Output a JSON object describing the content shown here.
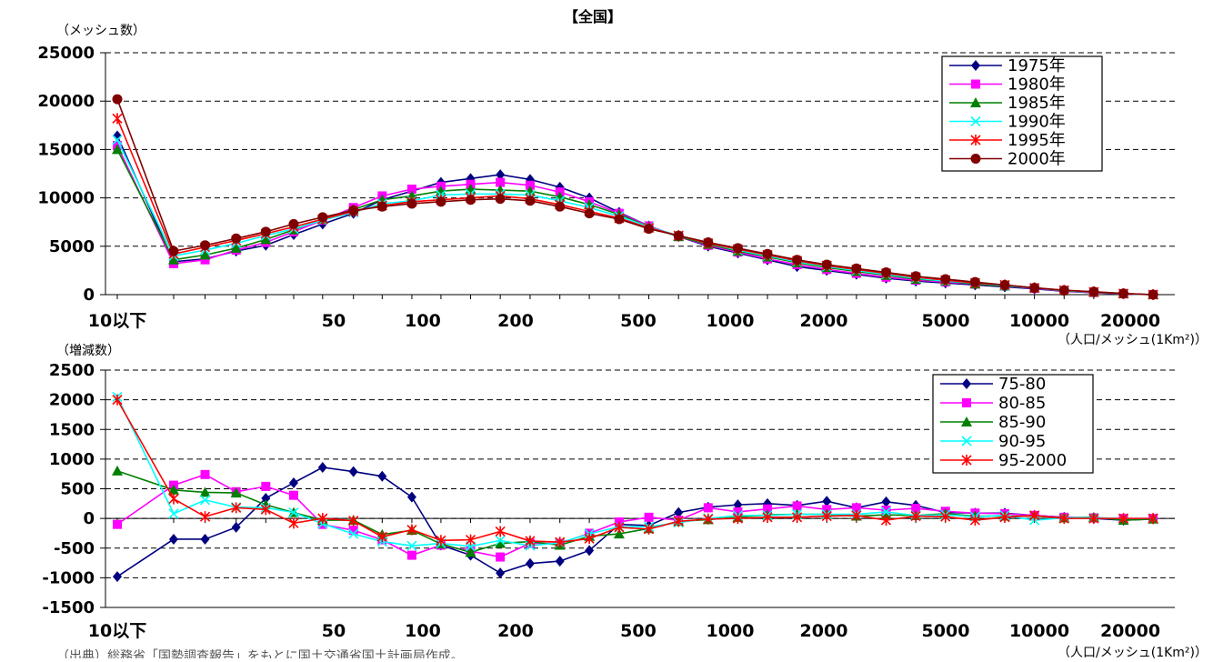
{
  "chart_data": [
    {
      "type": "line",
      "title": "【全国】",
      "ylabel": "（メッシュ数）",
      "xlabel": "（人口/メッシュ(1Km²)）",
      "ylim": [
        0,
        25000
      ],
      "yticks": [
        "0",
        "5000",
        "10000",
        "15000",
        "20000",
        "25000"
      ],
      "x_scale": "log",
      "x_tick_labels": [
        "10以下",
        "50",
        "100",
        "200",
        "500",
        "1000",
        "2000",
        "5000",
        "10000",
        "20000"
      ],
      "grid": "horizontal dashed",
      "legend_position": "top-right",
      "x": [
        "10以下",
        15,
        19,
        24,
        30,
        37,
        46,
        58,
        72,
        90,
        112,
        140,
        175,
        219,
        274,
        342,
        428,
        535,
        669,
        836,
        1045,
        1306,
        1632,
        2040,
        2550,
        3188,
        3985,
        4981,
        6227,
        7783,
        9729,
        12162,
        15202,
        19002,
        23753
      ],
      "series": [
        {
          "name": "1975年",
          "color": "#000080",
          "marker": "diamond",
          "values": [
            16400,
            3400,
            3700,
            4500,
            5100,
            6200,
            7300,
            8400,
            9800,
            10700,
            11600,
            12000,
            12400,
            11900,
            11100,
            10000,
            8500,
            7100,
            6000,
            5000,
            4300,
            3600,
            2900,
            2500,
            2100,
            1700,
            1400,
            1200,
            1000,
            800,
            600,
            350,
            200,
            60,
            0
          ]
        },
        {
          "name": "1980年",
          "color": "#FF00FF",
          "marker": "square",
          "values": [
            15400,
            3200,
            3600,
            4600,
            5400,
            6500,
            7700,
            9000,
            10200,
            10900,
            11200,
            11400,
            11600,
            11300,
            10600,
            9600,
            8400,
            7100,
            6000,
            5100,
            4400,
            3700,
            3100,
            2600,
            2200,
            1800,
            1500,
            1300,
            1100,
            900,
            650,
            380,
            220,
            80,
            0
          ]
        },
        {
          "name": "1985年",
          "color": "#008000",
          "marker": "triangle",
          "values": [
            15000,
            3600,
            4100,
            4800,
            5700,
            6700,
            7800,
            8800,
            9800,
            10200,
            10700,
            10900,
            10800,
            10700,
            10100,
            9300,
            8300,
            7000,
            6000,
            5200,
            4500,
            3900,
            3300,
            2800,
            2400,
            2000,
            1600,
            1400,
            1100,
            900,
            700,
            400,
            250,
            90,
            0
          ]
        },
        {
          "name": "1990年",
          "color": "#00FFFF",
          "marker": "x",
          "values": [
            16000,
            4000,
            4600,
            5300,
            6100,
            6800,
            7700,
            8500,
            9400,
            9700,
            10300,
            10400,
            10400,
            10300,
            9700,
            9000,
            8100,
            7000,
            6100,
            5300,
            4600,
            4000,
            3400,
            2900,
            2500,
            2100,
            1700,
            1400,
            1200,
            950,
            700,
            420,
            260,
            100,
            0
          ]
        },
        {
          "name": "1995年",
          "color": "#FF0000",
          "marker": "asterisk",
          "values": [
            18200,
            4200,
            4900,
            5600,
            6300,
            7000,
            7800,
            8600,
            9200,
            9600,
            9800,
            10000,
            10200,
            9900,
            9300,
            8600,
            7900,
            6900,
            6100,
            5300,
            4700,
            4100,
            3500,
            3000,
            2600,
            2200,
            1800,
            1500,
            1200,
            1000,
            700,
            450,
            280,
            110,
            0
          ]
        },
        {
          "name": "2000年",
          "color": "#800000",
          "marker": "circle",
          "values": [
            20200,
            4500,
            5100,
            5800,
            6500,
            7300,
            8000,
            8700,
            9100,
            9400,
            9600,
            9800,
            9900,
            9700,
            9100,
            8400,
            7800,
            6800,
            6100,
            5400,
            4800,
            4200,
            3600,
            3100,
            2700,
            2300,
            1900,
            1600,
            1300,
            1000,
            700,
            450,
            300,
            120,
            0
          ]
        }
      ]
    },
    {
      "type": "line",
      "ylabel": "（増減数）",
      "xlabel": "（人口/メッシュ(1Km²)）",
      "ylim": [
        -1500,
        2500
      ],
      "yticks": [
        "-1500",
        "-1000",
        "-500",
        "0",
        "500",
        "1000",
        "1500",
        "2000",
        "2500"
      ],
      "x_scale": "log",
      "x_tick_labels": [
        "10以下",
        "50",
        "100",
        "200",
        "500",
        "1000",
        "2000",
        "5000",
        "10000",
        "20000"
      ],
      "grid": "horizontal dashed",
      "legend_position": "top-right",
      "x": [
        "10以下",
        15,
        19,
        24,
        30,
        37,
        46,
        58,
        72,
        90,
        112,
        140,
        175,
        219,
        274,
        342,
        428,
        535,
        669,
        836,
        1045,
        1306,
        1632,
        2040,
        2550,
        3188,
        3985,
        4981,
        6227,
        7783,
        9729,
        12162,
        15202,
        19002,
        23753
      ],
      "series": [
        {
          "name": "75-80",
          "color": "#000080",
          "marker": "diamond",
          "values": [
            -980,
            -350,
            -350,
            -150,
            340,
            600,
            860,
            790,
            710,
            360,
            -450,
            -620,
            -920,
            -760,
            -720,
            -540,
            -100,
            -120,
            100,
            190,
            230,
            250,
            220,
            290,
            180,
            280,
            220,
            100,
            90,
            90,
            50,
            20,
            0,
            -30,
            -10
          ]
        },
        {
          "name": "80-85",
          "color": "#FF00FF",
          "marker": "square",
          "values": [
            -100,
            560,
            740,
            450,
            540,
            390,
            -100,
            -200,
            -360,
            -620,
            -450,
            -550,
            -650,
            -420,
            -420,
            -250,
            -60,
            20,
            -30,
            180,
            110,
            160,
            210,
            150,
            180,
            140,
            170,
            120,
            90,
            80,
            50,
            20,
            10,
            0,
            0
          ]
        },
        {
          "name": "85-90",
          "color": "#008000",
          "marker": "triangle",
          "values": [
            800,
            480,
            440,
            430,
            230,
            100,
            -30,
            -30,
            -270,
            -200,
            -430,
            -570,
            -420,
            -390,
            -450,
            -300,
            -260,
            -170,
            -50,
            -20,
            20,
            60,
            70,
            70,
            40,
            60,
            50,
            80,
            40,
            40,
            40,
            10,
            20,
            -30,
            -10
          ]
        },
        {
          "name": "90-95",
          "color": "#00FFFF",
          "marker": "x",
          "values": [
            2050,
            80,
            310,
            190,
            180,
            100,
            -90,
            -260,
            -390,
            -460,
            -420,
            -470,
            -370,
            -460,
            -410,
            -260,
            -140,
            -140,
            -70,
            0,
            50,
            50,
            70,
            70,
            70,
            110,
            50,
            60,
            30,
            50,
            -30,
            10,
            10,
            0,
            0
          ]
        },
        {
          "name": "95-2000",
          "color": "#FF0000",
          "marker": "asterisk",
          "values": [
            2000,
            330,
            30,
            180,
            150,
            -80,
            0,
            -40,
            -310,
            -190,
            -370,
            -360,
            -220,
            -380,
            -400,
            -340,
            -150,
            -180,
            -50,
            -10,
            0,
            20,
            20,
            40,
            50,
            -30,
            40,
            30,
            -30,
            20,
            50,
            0,
            0,
            0,
            0
          ]
        }
      ]
    }
  ],
  "footer": {
    "source": "（出典）総務省「国勢調査報告」をもとに国土交通省国土計画局作成。"
  }
}
